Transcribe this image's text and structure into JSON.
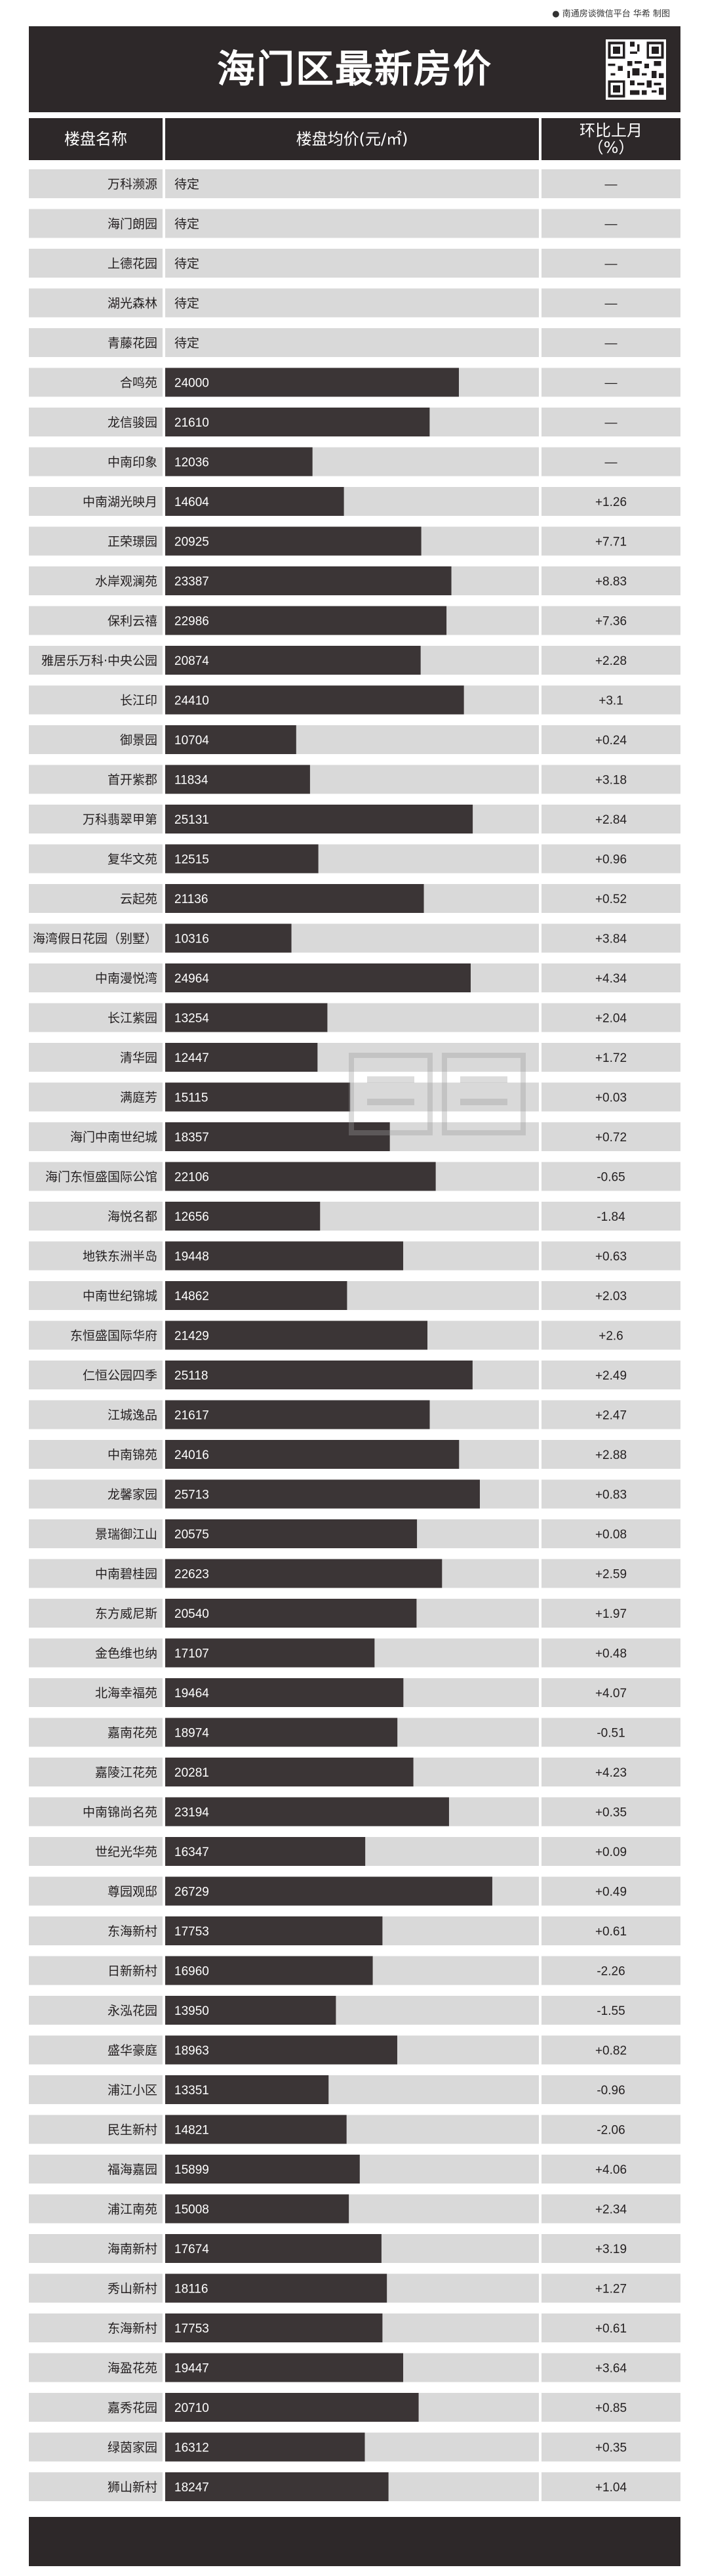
{
  "credit": "● 南通房谈微信平台 华希 制图",
  "title": "海门区最新房价",
  "headers": {
    "name": "楼盘名称",
    "price": "楼盘均价(元/㎡)",
    "change": "环比上月（%）"
  },
  "chart_data": {
    "type": "bar",
    "orientation": "horizontal",
    "x_ticks": [
      15000,
      20000,
      25000,
      30000
    ],
    "xlim": [
      0,
      30000
    ],
    "bar_color": "#3b3536",
    "row_color": "#d9d9d9",
    "rows": [
      {
        "name": "万科濒源",
        "price": null,
        "price_label": "待定",
        "change": "—"
      },
      {
        "name": "海门朗园",
        "price": null,
        "price_label": "待定",
        "change": "—"
      },
      {
        "name": "上德花园",
        "price": null,
        "price_label": "待定",
        "change": "—"
      },
      {
        "name": "湖光森林",
        "price": null,
        "price_label": "待定",
        "change": "—"
      },
      {
        "name": "青藤花园",
        "price": null,
        "price_label": "待定",
        "change": "—"
      },
      {
        "name": "合鸣苑",
        "price": 24000,
        "price_label": "24000",
        "change": "—"
      },
      {
        "name": "龙信骏园",
        "price": 21610,
        "price_label": "21610",
        "change": "—"
      },
      {
        "name": "中南印象",
        "price": 12036,
        "price_label": "12036",
        "change": "—"
      },
      {
        "name": "中南湖光映月",
        "price": 14604,
        "price_label": "14604",
        "change": "+1.26"
      },
      {
        "name": "正荣璟园",
        "price": 20925,
        "price_label": "20925",
        "change": "+7.71"
      },
      {
        "name": "水岸观澜苑",
        "price": 23387,
        "price_label": "23387",
        "change": "+8.83"
      },
      {
        "name": "保利云禧",
        "price": 22986,
        "price_label": "22986",
        "change": "+7.36"
      },
      {
        "name": "雅居乐万科·中央公园",
        "price": 20874,
        "price_label": "20874",
        "change": "+2.28"
      },
      {
        "name": "长江印",
        "price": 24410,
        "price_label": "24410",
        "change": "+3.1"
      },
      {
        "name": "御景园",
        "price": 10704,
        "price_label": "10704",
        "change": "+0.24"
      },
      {
        "name": "首开紫郡",
        "price": 11834,
        "price_label": "11834",
        "change": "+3.18"
      },
      {
        "name": "万科翡翠甲第",
        "price": 25131,
        "price_label": "25131",
        "change": "+2.84"
      },
      {
        "name": "复华文苑",
        "price": 12515,
        "price_label": "12515",
        "change": "+0.96"
      },
      {
        "name": "云起苑",
        "price": 21136,
        "price_label": "21136",
        "change": "+0.52"
      },
      {
        "name": "海湾假日花园（别墅）",
        "price": 10316,
        "price_label": "10316",
        "change": "+3.84"
      },
      {
        "name": "中南漫悦湾",
        "price": 24964,
        "price_label": "24964",
        "change": "+4.34"
      },
      {
        "name": "长江紫园",
        "price": 13254,
        "price_label": "13254",
        "change": "+2.04"
      },
      {
        "name": "清华园",
        "price": 12447,
        "price_label": "12447",
        "change": "+1.72"
      },
      {
        "name": "满庭芳",
        "price": 15115,
        "price_label": "15115",
        "change": "+0.03"
      },
      {
        "name": "海门中南世纪城",
        "price": 18357,
        "price_label": "18357",
        "change": "+0.72"
      },
      {
        "name": "海门东恒盛国际公馆",
        "price": 22106,
        "price_label": "22106",
        "change": "-0.65"
      },
      {
        "name": "海悦名都",
        "price": 12656,
        "price_label": "12656",
        "change": "-1.84"
      },
      {
        "name": "地铁东洲半岛",
        "price": 19448,
        "price_label": "19448",
        "change": "+0.63"
      },
      {
        "name": "中南世纪锦城",
        "price": 14862,
        "price_label": "14862",
        "change": "+2.03"
      },
      {
        "name": "东恒盛国际华府",
        "price": 21429,
        "price_label": "21429",
        "change": "+2.6"
      },
      {
        "name": "仁恒公园四季",
        "price": 25118,
        "price_label": "25118",
        "change": "+2.49"
      },
      {
        "name": "江城逸品",
        "price": 21617,
        "price_label": "21617",
        "change": "+2.47"
      },
      {
        "name": "中南锦苑",
        "price": 24016,
        "price_label": "24016",
        "change": "+2.88"
      },
      {
        "name": "龙馨家园",
        "price": 25713,
        "price_label": "25713",
        "change": "+0.83"
      },
      {
        "name": "景瑞御江山",
        "price": 20575,
        "price_label": "20575",
        "change": "+0.08"
      },
      {
        "name": "中南碧桂园",
        "price": 22623,
        "price_label": "22623",
        "change": "+2.59"
      },
      {
        "name": "东方威尼斯",
        "price": 20540,
        "price_label": "20540",
        "change": "+1.97"
      },
      {
        "name": "金色维也纳",
        "price": 17107,
        "price_label": "17107",
        "change": "+0.48"
      },
      {
        "name": "北海幸福苑",
        "price": 19464,
        "price_label": "19464",
        "change": "+4.07"
      },
      {
        "name": "嘉南花苑",
        "price": 18974,
        "price_label": "18974",
        "change": "-0.51"
      },
      {
        "name": "嘉陵江花苑",
        "price": 20281,
        "price_label": "20281",
        "change": "+4.23"
      },
      {
        "name": "中南锦尚名苑",
        "price": 23194,
        "price_label": "23194",
        "change": "+0.35"
      },
      {
        "name": "世纪光华苑",
        "price": 16347,
        "price_label": "16347",
        "change": "+0.09"
      },
      {
        "name": "尊园观邸",
        "price": 26729,
        "price_label": "26729",
        "change": "+0.49"
      },
      {
        "name": "东海新村",
        "price": 17753,
        "price_label": "17753",
        "change": "+0.61"
      },
      {
        "name": "日新新村",
        "price": 16960,
        "price_label": "16960",
        "change": "-2.26"
      },
      {
        "name": "永泓花园",
        "price": 13950,
        "price_label": "13950",
        "change": "-1.55"
      },
      {
        "name": "盛华豪庭",
        "price": 18963,
        "price_label": "18963",
        "change": "+0.82"
      },
      {
        "name": "浦江小区",
        "price": 13351,
        "price_label": "13351",
        "change": "-0.96"
      },
      {
        "name": "民生新村",
        "price": 14821,
        "price_label": "14821",
        "change": "-2.06"
      },
      {
        "name": "福海嘉园",
        "price": 15899,
        "price_label": "15899",
        "change": "+4.06"
      },
      {
        "name": "浦江南苑",
        "price": 15008,
        "price_label": "15008",
        "change": "+2.34"
      },
      {
        "name": "海南新村",
        "price": 17674,
        "price_label": "17674",
        "change": "+3.19"
      },
      {
        "name": "秀山新村",
        "price": 18116,
        "price_label": "18116",
        "change": "+1.27"
      },
      {
        "name": "东海新村",
        "price": 17753,
        "price_label": "17753",
        "change": "+0.61"
      },
      {
        "name": "海盈花苑",
        "price": 19447,
        "price_label": "19447",
        "change": "+3.64"
      },
      {
        "name": "嘉秀花园",
        "price": 20710,
        "price_label": "20710",
        "change": "+0.85"
      },
      {
        "name": "绿茵家园",
        "price": 16312,
        "price_label": "16312",
        "change": "+0.35"
      },
      {
        "name": "狮山新村",
        "price": 18247,
        "price_label": "18247",
        "change": "+1.04"
      }
    ]
  }
}
